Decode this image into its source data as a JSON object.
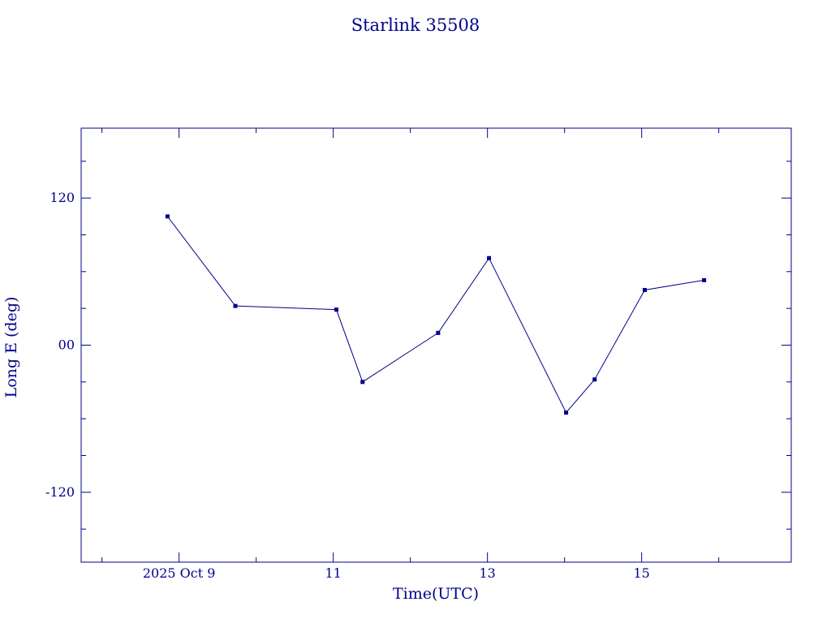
{
  "page": {
    "background": "#ffffff"
  },
  "colors": {
    "accent": "#00008B",
    "line": "#00008B",
    "marker": "#00008B",
    "text": "#00008B"
  },
  "chart_data": {
    "type": "line",
    "title": "Starlink 35508",
    "xlabel": "Time(UTC)",
    "ylabel": "Long E (deg)",
    "x": [
      8.85,
      9.73,
      11.04,
      11.38,
      12.36,
      13.02,
      14.02,
      14.39,
      15.04,
      15.81
    ],
    "y": [
      105,
      32,
      29,
      -30,
      10,
      71,
      -55,
      -28,
      45,
      53
    ],
    "x_unit": "day of 2025 Oct (UTC)",
    "y_unit": "deg",
    "xlim": [
      7.73,
      16.94
    ],
    "ylim": [
      -177,
      177
    ],
    "xticks_major": [
      {
        "v": 9,
        "label": "2025 Oct 9"
      },
      {
        "v": 11,
        "label": "11"
      },
      {
        "v": 13,
        "label": "13"
      },
      {
        "v": 15,
        "label": "15"
      }
    ],
    "xticks_minor": [
      8,
      10,
      12,
      14,
      16
    ],
    "yticks_major": [
      {
        "v": -120,
        "label": "-120"
      },
      {
        "v": 0,
        "label": "00"
      },
      {
        "v": 120,
        "label": "120"
      }
    ],
    "yticks_minor": [
      -150,
      -90,
      -60,
      -30,
      30,
      60,
      90,
      150
    ],
    "marker": "square",
    "marker_size": 5,
    "line_width": 1,
    "grid": false,
    "legend": null,
    "frame": "box-with-inward-ticks"
  }
}
